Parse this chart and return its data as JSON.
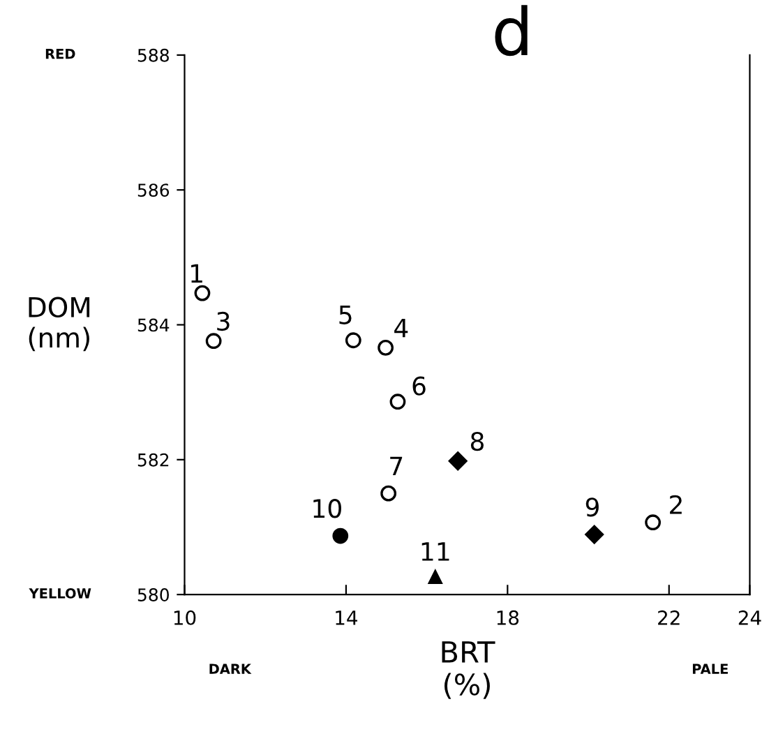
{
  "chart_data": {
    "type": "scatter",
    "title": "d",
    "xlabel": "BRT\n(%)",
    "ylabel": "DOM\n(nm)",
    "xlim": [
      10,
      24
    ],
    "xticks": [
      10,
      14,
      18,
      22,
      24
    ],
    "ylim": [
      580,
      588
    ],
    "yticks": [
      580,
      582,
      584,
      586,
      588
    ],
    "grid": false,
    "legend": false,
    "series": [
      {
        "color": "#ffffff",
        "marker": "circle",
        "x": [
          10.44,
          21.6,
          10.72,
          14.98,
          14.18,
          15.28,
          15.05
        ],
        "values": [
          584.47,
          581.07,
          583.76,
          583.66,
          583.77,
          582.86,
          581.5
        ]
      },
      {
        "color": "#000000",
        "marker": "diamond",
        "x": [
          16.77,
          20.15
        ],
        "values": [
          581.98,
          580.89
        ]
      },
      {
        "color": "#000000",
        "marker": "circle",
        "x": [
          13.86
        ],
        "values": [
          580.87
        ]
      },
      {
        "color": "#000000",
        "marker": "triangle",
        "x": [
          16.21
        ],
        "values": [
          580.26
        ]
      }
    ],
    "annotations": [
      {
        "text": "1",
        "x": 10.44,
        "y": 584.47
      },
      {
        "text": "2",
        "x": 21.6,
        "y": 581.07
      },
      {
        "text": "3",
        "x": 10.72,
        "y": 583.76
      },
      {
        "text": "4",
        "x": 14.98,
        "y": 583.66
      },
      {
        "text": "5",
        "x": 14.18,
        "y": 583.77
      },
      {
        "text": "6",
        "x": 15.28,
        "y": 582.86
      },
      {
        "text": "7",
        "x": 15.05,
        "y": 581.5
      },
      {
        "text": "8",
        "x": 16.77,
        "y": 581.98
      },
      {
        "text": "9",
        "x": 20.15,
        "y": 580.89
      },
      {
        "text": "10",
        "x": 13.86,
        "y": 580.87
      },
      {
        "text": "11",
        "x": 16.21,
        "y": 580.26
      },
      "RED",
      "YELLOW",
      "DARK",
      "PALE"
    ]
  }
}
